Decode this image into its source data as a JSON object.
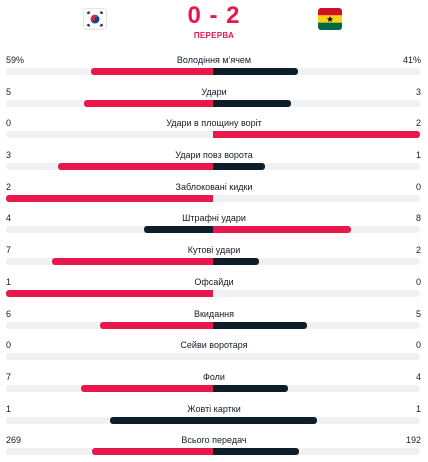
{
  "match": {
    "home_flag": "south-korea-flag-icon",
    "away_flag": "ghana-flag-icon",
    "score": "0 - 2",
    "status": "ПЕРЕРВА"
  },
  "colors": {
    "accent": "#e8194a",
    "dark": "#0d1e2b",
    "track": "#eff1f3"
  },
  "stats": [
    {
      "label": "Володіння м'ячем",
      "home": "59%",
      "away": "41%",
      "home_share": 0.59,
      "away_share": 0.41,
      "leader": "home"
    },
    {
      "label": "Удари",
      "home": "5",
      "away": "3",
      "home_share": 0.625,
      "away_share": 0.375,
      "leader": "home"
    },
    {
      "label": "Удари в площину воріт",
      "home": "0",
      "away": "2",
      "home_share": 0,
      "away_share": 1,
      "leader": "away"
    },
    {
      "label": "Удари повз ворота",
      "home": "3",
      "away": "1",
      "home_share": 0.75,
      "away_share": 0.25,
      "leader": "home"
    },
    {
      "label": "Заблоковані кидки",
      "home": "2",
      "away": "0",
      "home_share": 1,
      "away_share": 0,
      "leader": "home"
    },
    {
      "label": "Штрафні удари",
      "home": "4",
      "away": "8",
      "home_share": 0.333,
      "away_share": 0.667,
      "leader": "away"
    },
    {
      "label": "Кутові удари",
      "home": "7",
      "away": "2",
      "home_share": 0.778,
      "away_share": 0.222,
      "leader": "home"
    },
    {
      "label": "Офсайди",
      "home": "1",
      "away": "0",
      "home_share": 1,
      "away_share": 0,
      "leader": "home"
    },
    {
      "label": "Вкидання",
      "home": "6",
      "away": "5",
      "home_share": 0.545,
      "away_share": 0.455,
      "leader": "home"
    },
    {
      "label": "Сейви воротаря",
      "home": "0",
      "away": "0",
      "home_share": 0,
      "away_share": 0,
      "leader": "none"
    },
    {
      "label": "Фоли",
      "home": "7",
      "away": "4",
      "home_share": 0.636,
      "away_share": 0.364,
      "leader": "home"
    },
    {
      "label": "Жовті картки",
      "home": "1",
      "away": "1",
      "home_share": 0.5,
      "away_share": 0.5,
      "leader": "none"
    },
    {
      "label": "Всього передач",
      "home": "269",
      "away": "192",
      "home_share": 0.583,
      "away_share": 0.417,
      "leader": "home"
    }
  ]
}
